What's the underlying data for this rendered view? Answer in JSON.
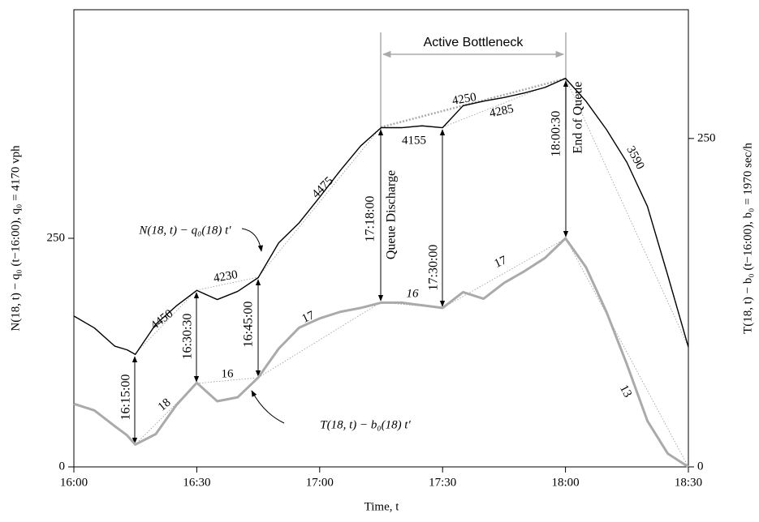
{
  "chart_data": {
    "type": "line",
    "xlabel": "Time, t",
    "ylabel": "N(18, t) − q₀ (t−16:00), q₀ = 4170 vph",
    "y2label": "T(18, t) − b₀ (t−16:00), b₀ = 1970 sec/h",
    "x": [
      0,
      5,
      10,
      13,
      15,
      20,
      25,
      30,
      35,
      40,
      45,
      50,
      55,
      60,
      65,
      70,
      75,
      80,
      85,
      90,
      95,
      100,
      105,
      110,
      115,
      120,
      125,
      130,
      135,
      140,
      145,
      150
    ],
    "series": [
      {
        "name": "N(18, t) − q₀(18) t′",
        "color": "#000000",
        "axis": "y",
        "values": [
          165,
          152,
          132,
          128,
          123,
          156,
          176,
          193,
          183,
          192,
          207,
          245,
          267,
          295,
          324,
          351,
          371,
          371,
          373,
          371,
          395,
          400,
          404,
          409,
          415,
          425,
          400,
          369,
          333,
          285,
          209,
          131
        ]
      },
      {
        "name": "T(18, t) − b₀(18) t′",
        "color": "#aaaaaa",
        "axis": "y2",
        "values": [
          48,
          43,
          31,
          24,
          17,
          25,
          47,
          64,
          50,
          53,
          68,
          90,
          106,
          113,
          118,
          121,
          125,
          125,
          123,
          121,
          133,
          128,
          140,
          149,
          159,
          174,
          152,
          118,
          78,
          35,
          10,
          0
        ]
      }
    ],
    "xlim": [
      0,
      150
    ],
    "xticks": [
      {
        "value": 0,
        "label": "16:00"
      },
      {
        "value": 30,
        "label": "16:30"
      },
      {
        "value": 60,
        "label": "17:00"
      },
      {
        "value": 90,
        "label": "17:30"
      },
      {
        "value": 120,
        "label": "18:00"
      },
      {
        "value": 150,
        "label": "18:30"
      }
    ],
    "ylim": [
      0,
      500
    ],
    "yticks": [
      0,
      250
    ],
    "y2lim": [
      0,
      348
    ],
    "y2ticks": [
      0,
      250
    ],
    "annotations": [
      "4450",
      "4230",
      "4475",
      "4155",
      "4250",
      "4285",
      "3590",
      "18",
      "16",
      "17",
      "16",
      "17",
      "13",
      "16:15:00",
      "16:30:30",
      "16:45:00",
      "17:18:00",
      "Queue Discharge",
      "17:30:00",
      "18:00:30",
      "End of Queue",
      "Active Bottleneck"
    ]
  }
}
